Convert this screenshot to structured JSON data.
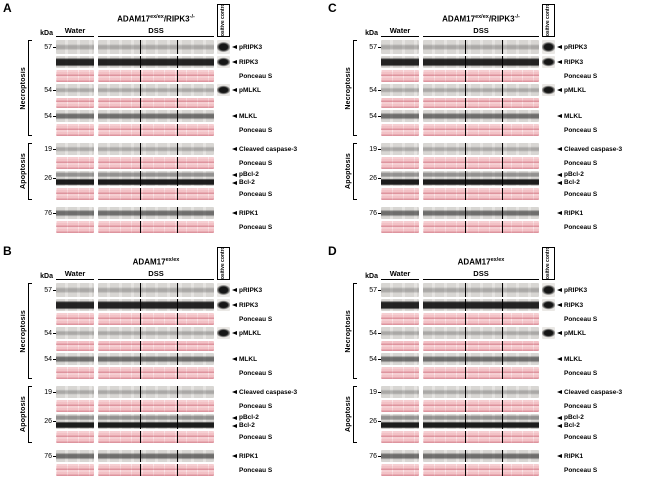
{
  "figure": {
    "colors": {
      "ponceau_pink_bg": "#f5cdd0",
      "blot_gray_bg": "#eae8e5",
      "band_black": "#161616"
    },
    "header": {
      "kda": "kDa",
      "water": "Water",
      "dss": "DSS",
      "pos_control": "Positive control"
    },
    "panels": [
      {
        "letter": "A",
        "title_segments": [
          {
            "t": "ADAM17"
          },
          {
            "s": "ex/ex"
          },
          {
            "t": "/RIPK3"
          },
          {
            "s": "-/-"
          }
        ]
      },
      {
        "letter": "C",
        "title_segments": [
          {
            "t": "ADAM17"
          },
          {
            "s": "ex/ex"
          },
          {
            "t": "/RIPK3"
          },
          {
            "s": "-/-"
          }
        ]
      },
      {
        "letter": "B",
        "title_segments": [
          {
            "t": "ADAM17"
          },
          {
            "s": "ex/ex"
          }
        ]
      },
      {
        "letter": "D",
        "title_segments": [
          {
            "t": "ADAM17"
          },
          {
            "s": "ex/ex"
          }
        ]
      }
    ],
    "sections": [
      {
        "label": "Necroptosis",
        "rows": [
          {
            "kind": "blot",
            "marker": "57",
            "label": "pRIPK3",
            "band": "faint",
            "pos": true,
            "h": 14
          },
          {
            "kind": "blot",
            "marker": "",
            "label": "RIPK3",
            "band": "dark",
            "pos": true,
            "h": 12
          },
          {
            "kind": "ponceau",
            "marker": "",
            "label": "Ponceau S",
            "h": 12
          },
          {
            "kind": "blot",
            "marker": "54",
            "label": "pMLKL",
            "band": "faint",
            "pos": true,
            "h": 12
          },
          {
            "kind": "ponceau",
            "marker": "",
            "label": "",
            "h": 10
          },
          {
            "kind": "blot",
            "marker": "54",
            "label": "MLKL",
            "band": "medium",
            "pos": false,
            "h": 12
          },
          {
            "kind": "ponceau",
            "marker": "",
            "label": "Ponceau S",
            "h": 12
          }
        ]
      },
      {
        "label": "Apoptosis",
        "rows": [
          {
            "kind": "blot",
            "marker": "19",
            "label": "Cleaved caspase-3",
            "band": "faint",
            "pos": false,
            "h": 12
          },
          {
            "kind": "ponceau",
            "marker": "",
            "label": "Ponceau S",
            "h": 12
          },
          {
            "kind": "blot",
            "marker": "26",
            "labels": [
              "pBcl-2",
              "Bcl-2"
            ],
            "band": "double",
            "pos": false,
            "h": 15
          },
          {
            "kind": "ponceau",
            "marker": "",
            "label": "Ponceau S",
            "h": 12
          }
        ]
      },
      {
        "label": "",
        "rows": [
          {
            "kind": "blot",
            "marker": "76",
            "label": "RIPK1",
            "band": "medium",
            "pos": false,
            "h": 12
          },
          {
            "kind": "ponceau",
            "marker": "",
            "label": "Ponceau S",
            "h": 12
          }
        ]
      }
    ]
  }
}
